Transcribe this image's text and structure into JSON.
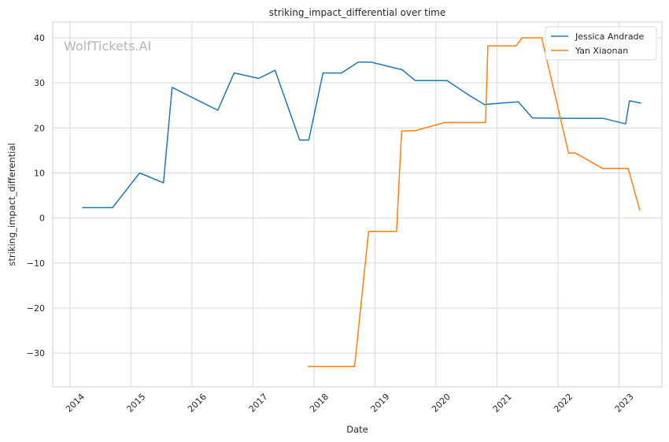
{
  "chart_data": {
    "type": "line",
    "title": "striking_impact_differential over time",
    "xlabel": "Date",
    "ylabel": "striking_impact_differential",
    "watermark": "WolfTickets.AI",
    "legend_position": "top-right",
    "grid": true,
    "ylim": [
      -37.5,
      43.5
    ],
    "yticks": [
      -30,
      -20,
      -10,
      0,
      10,
      20,
      30,
      40
    ],
    "xlim": [
      "2013-09-20",
      "2023-09-15"
    ],
    "xticks": [
      "2014",
      "2015",
      "2016",
      "2017",
      "2018",
      "2019",
      "2020",
      "2021",
      "2022",
      "2023"
    ],
    "series": [
      {
        "name": "Jessica Andrade",
        "color": "#1f77b4",
        "points": [
          [
            "2014-03-15",
            2.3
          ],
          [
            "2014-09-13",
            2.3
          ],
          [
            "2015-02-22",
            10.0
          ],
          [
            "2015-07-15",
            7.8
          ],
          [
            "2015-09-05",
            29.0
          ],
          [
            "2016-06-04",
            23.9
          ],
          [
            "2016-09-10",
            32.2
          ],
          [
            "2017-02-04",
            31.0
          ],
          [
            "2017-05-13",
            32.8
          ],
          [
            "2017-10-07",
            17.3
          ],
          [
            "2017-12-01",
            17.3
          ],
          [
            "2018-02-24",
            32.2
          ],
          [
            "2018-06-15",
            32.2
          ],
          [
            "2018-09-22",
            34.6
          ],
          [
            "2018-12-10",
            34.6
          ],
          [
            "2019-05-20",
            33.1
          ],
          [
            "2019-06-10",
            33.0
          ],
          [
            "2019-08-31",
            30.5
          ],
          [
            "2020-03-07",
            30.5
          ],
          [
            "2020-07-20",
            27.2
          ],
          [
            "2020-10-17",
            25.2
          ],
          [
            "2021-05-08",
            25.8
          ],
          [
            "2021-08-01",
            22.2
          ],
          [
            "2022-04-09",
            22.1
          ],
          [
            "2022-10-01",
            22.1
          ],
          [
            "2023-02-10",
            20.9
          ],
          [
            "2023-03-05",
            26.0
          ],
          [
            "2023-05-13",
            25.5
          ]
        ]
      },
      {
        "name": "Yan Xiaonan",
        "color": "#ff7f0e",
        "points": [
          [
            "2017-11-25",
            -33.0
          ],
          [
            "2018-09-01",
            -33.0
          ],
          [
            "2018-11-24",
            -3.0
          ],
          [
            "2019-05-10",
            -3.0
          ],
          [
            "2019-06-10",
            19.3
          ],
          [
            "2019-08-31",
            19.4
          ],
          [
            "2020-02-22",
            21.2
          ],
          [
            "2020-10-24",
            21.2
          ],
          [
            "2020-11-07",
            38.2
          ],
          [
            "2021-04-24",
            38.2
          ],
          [
            "2021-06-01",
            40.0
          ],
          [
            "2021-09-25",
            40.0
          ],
          [
            "2022-03-05",
            14.4
          ],
          [
            "2022-04-15",
            14.4
          ],
          [
            "2022-09-25",
            11.0
          ],
          [
            "2023-02-25",
            11.0
          ],
          [
            "2023-05-06",
            1.7
          ]
        ]
      }
    ]
  }
}
